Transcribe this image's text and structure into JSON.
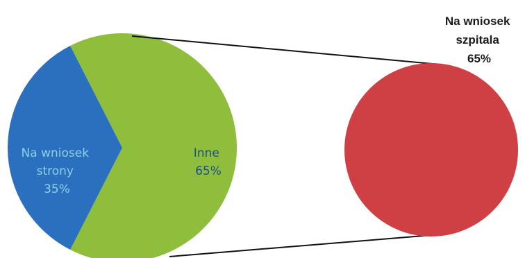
{
  "chart_data": {
    "type": "pie",
    "subtype": "pie-of-pie",
    "main_pie": {
      "slices": [
        {
          "lines": [
            "Na wniosek",
            "strony",
            "35%"
          ],
          "value": 35,
          "color": "#2a70bf",
          "label_color": "#8fd0e8"
        },
        {
          "lines": [
            "Inne",
            "65%"
          ],
          "value": 65,
          "color": "#8fbd3c",
          "label_color": "#1f4e8a"
        }
      ]
    },
    "detail_pie": {
      "slices": [
        {
          "lines": [
            "Na wniosek",
            "szpitala",
            "65%"
          ],
          "value": 65,
          "color": "#cf4045"
        }
      ]
    },
    "connector_color": "#111111"
  }
}
